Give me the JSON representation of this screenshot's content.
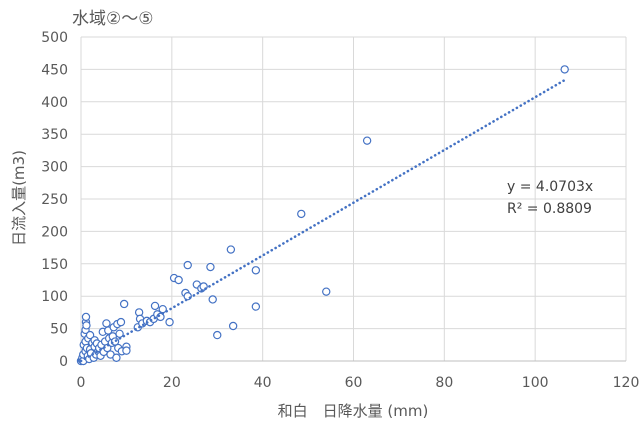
{
  "chart_data": {
    "type": "scatter",
    "title": "水域②～⑤",
    "xlabel": "和白　日降水量 (mm)",
    "ylabel": "日流入量(m3)",
    "xlim": [
      0,
      120
    ],
    "ylim": [
      0,
      500
    ],
    "xticks": [
      "0",
      "20",
      "40",
      "60",
      "80",
      "100",
      "120"
    ],
    "yticks": [
      "0",
      "50",
      "100",
      "150",
      "200",
      "250",
      "300",
      "350",
      "400",
      "450",
      "500"
    ],
    "grid": true,
    "legend": "none",
    "marker": "open-circle",
    "marker_color": "#4472C4",
    "trendline": {
      "type": "linear-through-origin",
      "slope": 4.0703,
      "x_range": [
        0,
        106.5
      ],
      "style": "dotted",
      "color": "#4472C4",
      "equation_label": "y = 4.0703x",
      "r2_label": "R² = 0.8809"
    },
    "series": [
      {
        "points": [
          [
            0,
            0
          ],
          [
            0.2,
            2
          ],
          [
            0.3,
            5
          ],
          [
            0.5,
            0
          ],
          [
            0.5,
            10
          ],
          [
            0.6,
            25
          ],
          [
            0.8,
            42
          ],
          [
            1,
            15
          ],
          [
            1,
            30
          ],
          [
            1,
            48
          ],
          [
            1.1,
            60
          ],
          [
            1.1,
            68
          ],
          [
            1.2,
            55
          ],
          [
            1.3,
            20
          ],
          [
            1.5,
            8
          ],
          [
            1.6,
            35
          ],
          [
            1.8,
            3
          ],
          [
            2,
            18
          ],
          [
            2,
            40
          ],
          [
            2.2,
            12
          ],
          [
            2.5,
            28
          ],
          [
            2.8,
            5
          ],
          [
            3,
            22
          ],
          [
            3,
            32
          ],
          [
            3.3,
            10
          ],
          [
            3.5,
            27
          ],
          [
            3.8,
            15
          ],
          [
            4,
            20
          ],
          [
            4.3,
            8
          ],
          [
            4.5,
            25
          ],
          [
            4.8,
            45
          ],
          [
            5,
            14
          ],
          [
            5.3,
            30
          ],
          [
            5.6,
            58
          ],
          [
            5.8,
            20
          ],
          [
            6,
            47
          ],
          [
            6.2,
            35
          ],
          [
            6.5,
            10
          ],
          [
            6.8,
            28
          ],
          [
            7,
            38
          ],
          [
            7.2,
            52
          ],
          [
            7.5,
            30
          ],
          [
            7.8,
            5
          ],
          [
            8,
            57
          ],
          [
            8.2,
            20
          ],
          [
            8.5,
            42
          ],
          [
            8.8,
            60
          ],
          [
            9,
            15
          ],
          [
            9.5,
            88
          ],
          [
            10,
            22
          ],
          [
            10,
            16
          ],
          [
            12.5,
            52
          ],
          [
            12.8,
            75
          ],
          [
            13,
            65
          ],
          [
            13.5,
            58
          ],
          [
            14.5,
            62
          ],
          [
            15.2,
            60
          ],
          [
            16,
            65
          ],
          [
            16.3,
            85
          ],
          [
            16.8,
            72
          ],
          [
            17.5,
            68
          ],
          [
            18,
            80
          ],
          [
            19.5,
            60
          ],
          [
            20.5,
            128
          ],
          [
            21.5,
            125
          ],
          [
            23,
            105
          ],
          [
            23.5,
            100
          ],
          [
            23.5,
            148
          ],
          [
            25.5,
            118
          ],
          [
            26.5,
            112
          ],
          [
            27,
            115
          ],
          [
            28.5,
            145
          ],
          [
            29,
            95
          ],
          [
            30,
            40
          ],
          [
            33,
            172
          ],
          [
            33.5,
            54
          ],
          [
            38.5,
            140
          ],
          [
            38.5,
            84
          ],
          [
            48.5,
            227
          ],
          [
            54,
            107
          ],
          [
            63,
            340
          ],
          [
            106.5,
            450
          ]
        ]
      }
    ]
  }
}
